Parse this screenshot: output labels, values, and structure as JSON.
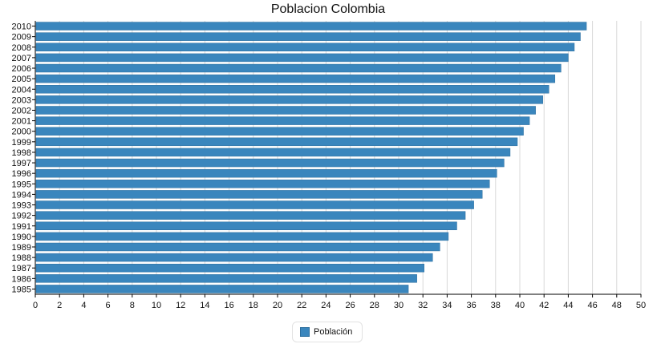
{
  "colors": {
    "bar": "#3a86bd",
    "bar_stroke": "#2c6e9e",
    "grid": "#d9d9d9",
    "axis": "#000000"
  },
  "chart_data": {
    "type": "bar",
    "orientation": "horizontal",
    "title": "Poblacion Colombia",
    "xlabel": "",
    "ylabel": "",
    "xlim": [
      0,
      50
    ],
    "x_ticks": [
      "0",
      "2",
      "4",
      "6",
      "8",
      "10",
      "12",
      "14",
      "16",
      "18",
      "20",
      "22",
      "24",
      "26",
      "28",
      "30",
      "32",
      "34",
      "36",
      "38",
      "40",
      "42",
      "44",
      "46",
      "48",
      "50"
    ],
    "grid": "vertical",
    "legend_position": "bottom-center",
    "categories": [
      "2010",
      "2009",
      "2008",
      "2007",
      "2006",
      "2005",
      "2004",
      "2003",
      "2002",
      "2001",
      "2000",
      "1999",
      "1998",
      "1997",
      "1996",
      "1995",
      "1994",
      "1993",
      "1992",
      "1991",
      "1990",
      "1989",
      "1988",
      "1987",
      "1986",
      "1985"
    ],
    "series": [
      {
        "name": "Población",
        "values": [
          45.5,
          45.0,
          44.5,
          44.0,
          43.4,
          42.9,
          42.4,
          41.9,
          41.3,
          40.8,
          40.3,
          39.8,
          39.2,
          38.7,
          38.1,
          37.5,
          36.9,
          36.2,
          35.5,
          34.8,
          34.1,
          33.4,
          32.8,
          32.1,
          31.5,
          30.8
        ]
      }
    ]
  },
  "legend": {
    "label": "Población"
  }
}
